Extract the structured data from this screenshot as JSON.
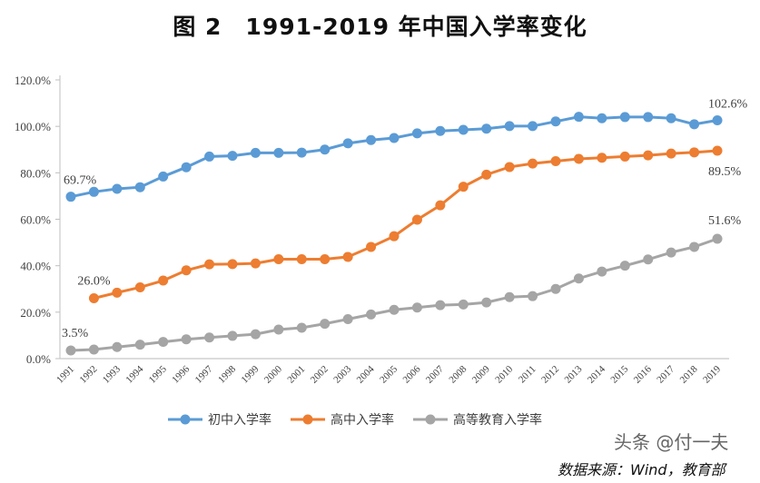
{
  "chart_data": {
    "type": "line",
    "title": "图 2　1991-2019 年中国入学率变化",
    "x": [
      1991,
      1992,
      1993,
      1994,
      1995,
      1996,
      1997,
      1998,
      1999,
      2000,
      2001,
      2002,
      2003,
      2004,
      2005,
      2006,
      2007,
      2008,
      2009,
      2010,
      2011,
      2012,
      2013,
      2014,
      2015,
      2016,
      2017,
      2018,
      2019
    ],
    "ylim": [
      0,
      120
    ],
    "yticks": [
      "0.0%",
      "20.0%",
      "40.0%",
      "60.0%",
      "80.0%",
      "100.0%",
      "120.0%"
    ],
    "grid": false,
    "legend": "bottom",
    "series": [
      {
        "name": "初中入学率",
        "color": "#5B9BD5",
        "values": [
          69.7,
          71.8,
          73.1,
          73.8,
          78.4,
          82.4,
          87.0,
          87.3,
          88.6,
          88.6,
          88.7,
          90.0,
          92.7,
          94.1,
          95.0,
          97.0,
          98.0,
          98.5,
          99.0,
          100.1,
          100.1,
          102.1,
          104.1,
          103.5,
          104.0,
          104.0,
          103.5,
          100.9,
          102.6
        ],
        "labels": [
          {
            "year": 1991,
            "text": "69.7%"
          },
          {
            "year": 2019,
            "text": "102.6%"
          }
        ]
      },
      {
        "name": "高中入学率",
        "color": "#ED7D31",
        "values": [
          null,
          26.0,
          28.4,
          30.7,
          33.6,
          38.0,
          40.6,
          40.7,
          41.0,
          42.8,
          42.8,
          42.8,
          43.8,
          48.1,
          52.7,
          59.8,
          66.0,
          74.0,
          79.2,
          82.5,
          84.0,
          85.0,
          86.0,
          86.5,
          87.0,
          87.5,
          88.3,
          88.8,
          89.5
        ],
        "labels": [
          {
            "year": 1992,
            "text": "26.0%"
          },
          {
            "year": 2019,
            "text": "89.5%"
          }
        ]
      },
      {
        "name": "高等教育入学率",
        "color": "#A5A5A5",
        "values": [
          3.5,
          3.9,
          5.0,
          6.0,
          7.2,
          8.3,
          9.1,
          9.8,
          10.5,
          12.5,
          13.3,
          15.0,
          17.0,
          19.0,
          21.0,
          22.0,
          23.0,
          23.3,
          24.2,
          26.5,
          26.9,
          30.0,
          34.5,
          37.5,
          40.0,
          42.7,
          45.7,
          48.1,
          51.6
        ],
        "labels": [
          {
            "year": 1991,
            "text": "3.5%"
          },
          {
            "year": 2019,
            "text": "51.6%"
          }
        ]
      }
    ]
  },
  "source": "数据来源：Wind，教育部",
  "watermark": "头条 @付一夫"
}
